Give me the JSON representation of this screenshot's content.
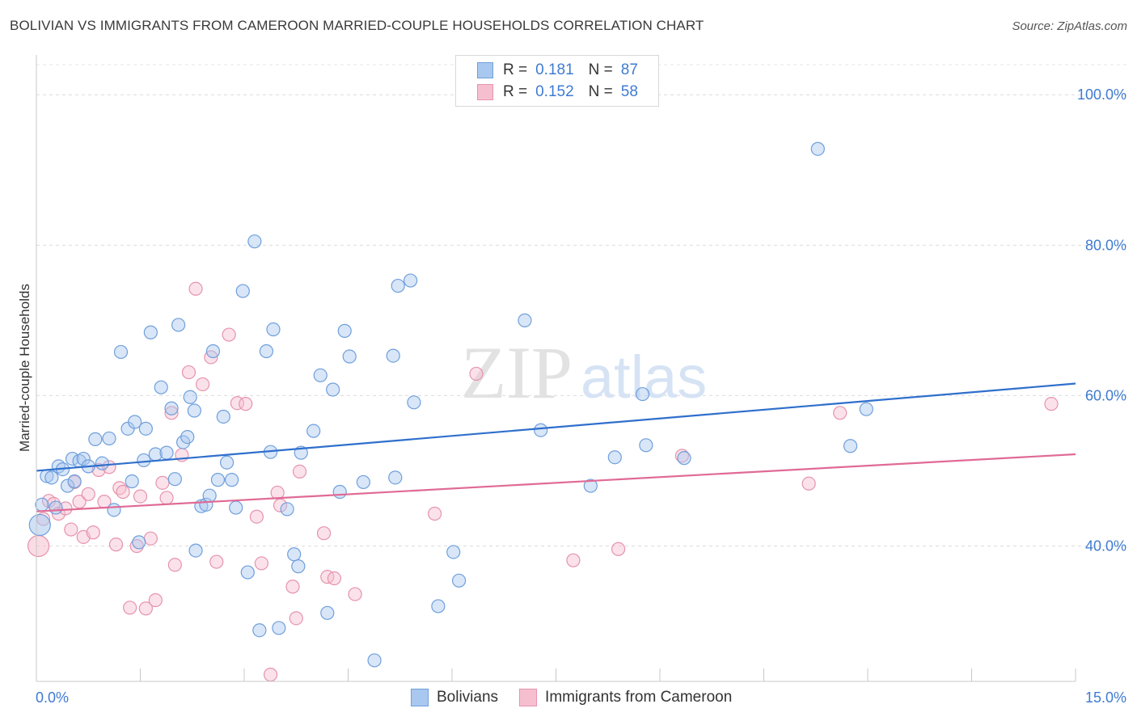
{
  "title": "BOLIVIAN VS IMMIGRANTS FROM CAMEROON MARRIED-COUPLE HOUSEHOLDS CORRELATION CHART",
  "source": "Source: ZipAtlas.com",
  "legend_top": {
    "rows": [
      {
        "r_label": "R =",
        "r_value": "0.181",
        "n_label": "N =",
        "n_value": "87"
      },
      {
        "r_label": "R =",
        "r_value": "0.152",
        "n_label": "N =",
        "n_value": "58"
      }
    ]
  },
  "legend_bottom": [
    "Bolivians",
    "Immigrants from Cameroon"
  ],
  "colors": {
    "blue_fill": "#a9c8ef",
    "blue_stroke": "#6f9fdc",
    "blue_line": "#2f6fcc",
    "pink_fill": "#f6bfd0",
    "pink_stroke": "#e693ad",
    "pink_line": "#e06a95",
    "tick": "#3f7bd1"
  },
  "chart_data": {
    "type": "scatter",
    "title": "BOLIVIAN VS IMMIGRANTS FROM CAMEROON MARRIED-COUPLE HOUSEHOLDS CORRELATION CHART",
    "xlabel": "",
    "ylabel": "Married-couple Households",
    "xlim": [
      0,
      15
    ],
    "ylim": [
      22,
      104
    ],
    "x_ticks": [
      "0.0%",
      "15.0%"
    ],
    "y_ticks": [
      {
        "value": 40,
        "label": "40.0%"
      },
      {
        "value": 60,
        "label": "60.0%"
      },
      {
        "value": 80,
        "label": "80.0%"
      },
      {
        "value": 100,
        "label": "100.0%"
      }
    ],
    "grid": true,
    "legend_position": "top-center",
    "watermark": "ZIPatlas",
    "series": [
      {
        "name": "Bolivians",
        "R": 0.181,
        "N": 87,
        "trend": {
          "x": [
            0,
            15
          ],
          "y": [
            50.0,
            61.6
          ]
        },
        "points": [
          [
            0.05,
            42.8
          ],
          [
            0.08,
            45.5
          ],
          [
            0.15,
            49.3
          ],
          [
            0.22,
            49.1
          ],
          [
            0.28,
            45.1
          ],
          [
            0.32,
            50.6
          ],
          [
            0.38,
            50.2
          ],
          [
            0.45,
            48.0
          ],
          [
            0.52,
            51.6
          ],
          [
            0.55,
            48.6
          ],
          [
            0.62,
            51.3
          ],
          [
            0.68,
            51.6
          ],
          [
            0.75,
            50.6
          ],
          [
            0.85,
            54.2
          ],
          [
            0.95,
            51.0
          ],
          [
            1.05,
            54.3
          ],
          [
            1.12,
            44.8
          ],
          [
            1.22,
            65.8
          ],
          [
            1.32,
            55.6
          ],
          [
            1.38,
            48.6
          ],
          [
            1.42,
            56.5
          ],
          [
            1.48,
            40.5
          ],
          [
            1.55,
            51.4
          ],
          [
            1.58,
            55.6
          ],
          [
            1.65,
            68.4
          ],
          [
            1.72,
            52.2
          ],
          [
            1.8,
            61.1
          ],
          [
            1.88,
            52.4
          ],
          [
            1.95,
            58.3
          ],
          [
            2.0,
            48.9
          ],
          [
            2.05,
            69.4
          ],
          [
            2.12,
            53.8
          ],
          [
            2.18,
            54.5
          ],
          [
            2.22,
            59.8
          ],
          [
            2.28,
            58.0
          ],
          [
            2.3,
            39.4
          ],
          [
            2.38,
            45.3
          ],
          [
            2.45,
            45.5
          ],
          [
            2.5,
            46.7
          ],
          [
            2.55,
            65.9
          ],
          [
            2.62,
            48.8
          ],
          [
            2.7,
            57.2
          ],
          [
            2.75,
            51.1
          ],
          [
            2.82,
            48.8
          ],
          [
            2.88,
            45.1
          ],
          [
            2.98,
            73.9
          ],
          [
            3.05,
            36.5
          ],
          [
            3.15,
            80.5
          ],
          [
            3.22,
            28.8
          ],
          [
            3.32,
            65.9
          ],
          [
            3.38,
            52.5
          ],
          [
            3.42,
            68.8
          ],
          [
            3.5,
            29.1
          ],
          [
            3.62,
            44.9
          ],
          [
            3.72,
            38.9
          ],
          [
            3.78,
            37.3
          ],
          [
            3.82,
            52.4
          ],
          [
            4.0,
            55.3
          ],
          [
            4.1,
            62.7
          ],
          [
            4.2,
            31.1
          ],
          [
            4.28,
            60.8
          ],
          [
            4.38,
            47.2
          ],
          [
            4.45,
            68.6
          ],
          [
            4.52,
            65.2
          ],
          [
            4.72,
            48.5
          ],
          [
            4.88,
            24.8
          ],
          [
            5.15,
            65.3
          ],
          [
            5.18,
            49.1
          ],
          [
            5.22,
            74.6
          ],
          [
            5.4,
            75.3
          ],
          [
            5.45,
            59.1
          ],
          [
            5.8,
            32.0
          ],
          [
            6.02,
            39.2
          ],
          [
            6.1,
            35.4
          ],
          [
            7.05,
            70.0
          ],
          [
            7.28,
            55.4
          ],
          [
            8.0,
            48.0
          ],
          [
            8.35,
            51.8
          ],
          [
            8.75,
            60.2
          ],
          [
            8.8,
            53.4
          ],
          [
            9.35,
            51.7
          ],
          [
            11.28,
            92.8
          ],
          [
            11.75,
            53.3
          ],
          [
            11.98,
            58.2
          ]
        ]
      },
      {
        "name": "Immigrants from Cameroon",
        "R": 0.152,
        "N": 58,
        "trend": {
          "x": [
            0,
            15
          ],
          "y": [
            44.6,
            52.2
          ]
        },
        "points": [
          [
            0.03,
            40.0
          ],
          [
            0.1,
            43.6
          ],
          [
            0.18,
            46.0
          ],
          [
            0.25,
            45.6
          ],
          [
            0.32,
            44.3
          ],
          [
            0.42,
            45.0
          ],
          [
            0.5,
            42.2
          ],
          [
            0.55,
            48.5
          ],
          [
            0.62,
            45.9
          ],
          [
            0.68,
            41.2
          ],
          [
            0.75,
            46.9
          ],
          [
            0.82,
            41.8
          ],
          [
            0.9,
            50.1
          ],
          [
            0.98,
            45.9
          ],
          [
            1.05,
            50.5
          ],
          [
            1.15,
            40.2
          ],
          [
            1.2,
            47.7
          ],
          [
            1.25,
            47.2
          ],
          [
            1.35,
            31.8
          ],
          [
            1.45,
            40.0
          ],
          [
            1.5,
            46.6
          ],
          [
            1.58,
            31.7
          ],
          [
            1.65,
            41.0
          ],
          [
            1.72,
            32.8
          ],
          [
            1.82,
            48.4
          ],
          [
            1.88,
            46.4
          ],
          [
            1.95,
            57.7
          ],
          [
            2.0,
            37.5
          ],
          [
            2.1,
            52.1
          ],
          [
            2.2,
            63.1
          ],
          [
            2.3,
            74.2
          ],
          [
            2.4,
            61.5
          ],
          [
            2.52,
            65.1
          ],
          [
            2.6,
            37.9
          ],
          [
            2.78,
            68.1
          ],
          [
            2.9,
            59.0
          ],
          [
            3.02,
            58.9
          ],
          [
            3.18,
            43.9
          ],
          [
            3.25,
            37.7
          ],
          [
            3.38,
            22.9
          ],
          [
            3.48,
            47.1
          ],
          [
            3.52,
            45.4
          ],
          [
            3.7,
            34.6
          ],
          [
            3.75,
            30.4
          ],
          [
            3.8,
            49.9
          ],
          [
            4.15,
            41.7
          ],
          [
            4.2,
            35.9
          ],
          [
            4.3,
            35.7
          ],
          [
            4.6,
            33.6
          ],
          [
            5.75,
            44.3
          ],
          [
            6.35,
            62.9
          ],
          [
            7.75,
            38.1
          ],
          [
            8.4,
            39.6
          ],
          [
            9.32,
            52.0
          ],
          [
            11.15,
            48.3
          ],
          [
            11.6,
            57.7
          ],
          [
            14.65,
            58.9
          ]
        ]
      }
    ]
  }
}
